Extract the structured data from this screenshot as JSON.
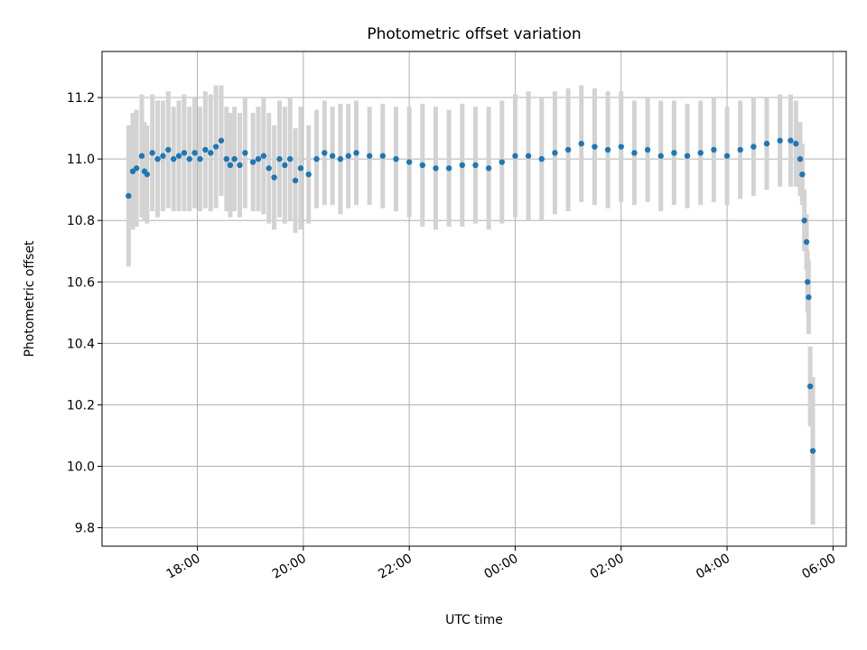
{
  "chart_data": {
    "type": "scatter",
    "title": "Photometric offset variation",
    "xlabel": "UTC time",
    "ylabel": "Photometric offset",
    "x_tick_labels": [
      "18:00",
      "20:00",
      "22:00",
      "00:00",
      "02:00",
      "04:00",
      "06:00"
    ],
    "x_tick_hours": [
      18,
      20,
      22,
      24,
      26,
      28,
      30
    ],
    "x_range_hours": [
      16.2,
      30.25
    ],
    "y_ticks": [
      9.8,
      10.0,
      10.2,
      10.4,
      10.6,
      10.8,
      11.0,
      11.2
    ],
    "y_tick_labels": [
      "9.8",
      "10.0",
      "10.2",
      "10.4",
      "10.6",
      "10.8",
      "11.0",
      "11.2"
    ],
    "ylim": [
      9.74,
      11.35
    ],
    "grid": true,
    "colors": {
      "points": "#1f77b4",
      "errorbars": "#d3d3d3",
      "grid": "#b0b0b0"
    },
    "series": [
      {
        "x_hours": [
          16.7,
          16.78,
          16.85,
          16.95,
          17.0,
          17.05,
          17.15,
          17.25,
          17.35,
          17.45,
          17.55,
          17.65,
          17.75,
          17.85,
          17.95,
          18.05,
          18.15,
          18.25,
          18.35,
          18.45,
          18.55,
          18.62,
          18.7,
          18.8,
          18.9,
          19.05,
          19.15,
          19.25,
          19.35,
          19.45,
          19.55,
          19.65,
          19.75,
          19.85,
          19.95,
          20.1,
          20.25,
          20.4,
          20.55,
          20.7,
          20.85,
          21.0,
          21.25,
          21.5,
          21.75,
          22.0,
          22.25,
          22.5,
          22.75,
          23.0,
          23.25,
          23.5,
          23.75,
          24.0,
          24.25,
          24.5,
          24.75,
          25.0,
          25.25,
          25.5,
          25.75,
          26.0,
          26.25,
          26.5,
          26.75,
          27.0,
          27.25,
          27.5,
          27.75,
          28.0,
          28.25,
          28.5,
          28.75,
          29.0,
          29.2,
          29.3,
          29.38,
          29.42,
          29.46,
          29.5,
          29.52,
          29.54,
          29.57,
          29.62
        ],
        "y": [
          10.88,
          10.96,
          10.97,
          11.01,
          10.96,
          10.95,
          11.02,
          11.0,
          11.01,
          11.03,
          11.0,
          11.01,
          11.02,
          11.0,
          11.02,
          11.0,
          11.03,
          11.02,
          11.04,
          11.06,
          11.0,
          10.98,
          11.0,
          10.98,
          11.02,
          10.99,
          11.0,
          11.01,
          10.97,
          10.94,
          11.0,
          10.98,
          11.0,
          10.93,
          10.97,
          10.95,
          11.0,
          11.02,
          11.01,
          11.0,
          11.01,
          11.02,
          11.01,
          11.01,
          11.0,
          10.99,
          10.98,
          10.97,
          10.97,
          10.98,
          10.98,
          10.97,
          10.99,
          11.01,
          11.01,
          11.0,
          11.02,
          11.03,
          11.05,
          11.04,
          11.03,
          11.04,
          11.02,
          11.03,
          11.01,
          11.02,
          11.01,
          11.02,
          11.03,
          11.01,
          11.03,
          11.04,
          11.05,
          11.06,
          11.06,
          11.05,
          11.0,
          10.95,
          10.8,
          10.73,
          10.6,
          10.55,
          10.26,
          10.05
        ],
        "yerr": [
          0.23,
          0.19,
          0.19,
          0.2,
          0.16,
          0.16,
          0.19,
          0.19,
          0.18,
          0.19,
          0.17,
          0.18,
          0.19,
          0.17,
          0.18,
          0.17,
          0.19,
          0.19,
          0.2,
          0.18,
          0.17,
          0.17,
          0.17,
          0.17,
          0.18,
          0.16,
          0.17,
          0.19,
          0.18,
          0.17,
          0.19,
          0.19,
          0.2,
          0.17,
          0.2,
          0.16,
          0.16,
          0.17,
          0.16,
          0.18,
          0.17,
          0.17,
          0.16,
          0.17,
          0.17,
          0.18,
          0.2,
          0.2,
          0.19,
          0.2,
          0.19,
          0.2,
          0.2,
          0.2,
          0.21,
          0.2,
          0.2,
          0.2,
          0.19,
          0.19,
          0.19,
          0.18,
          0.17,
          0.17,
          0.18,
          0.17,
          0.17,
          0.17,
          0.17,
          0.16,
          0.16,
          0.16,
          0.15,
          0.15,
          0.15,
          0.14,
          0.12,
          0.1,
          0.1,
          0.09,
          0.1,
          0.12,
          0.13,
          0.24
        ]
      }
    ]
  }
}
